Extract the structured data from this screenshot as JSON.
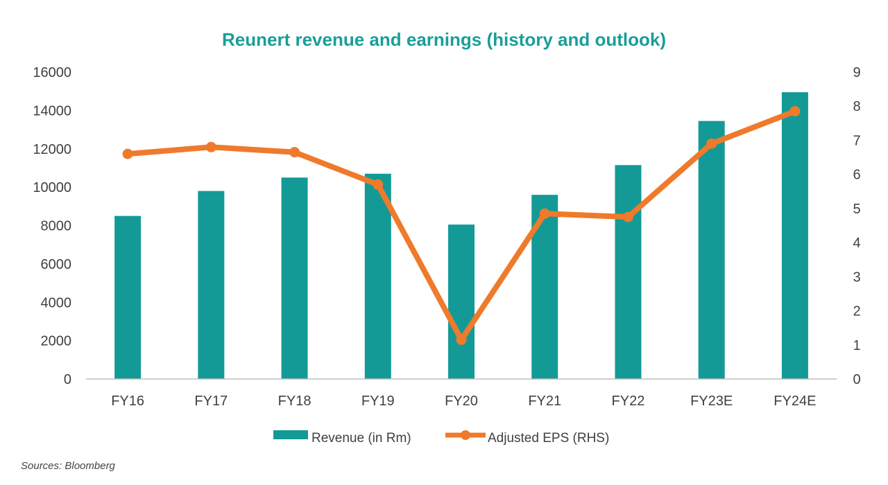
{
  "chart_data": {
    "type": "bar",
    "title": "Reunert revenue and earnings (history and outlook)",
    "categories": [
      "FY16",
      "FY17",
      "FY18",
      "FY19",
      "FY20",
      "FY21",
      "FY22",
      "FY23E",
      "FY24E"
    ],
    "series": [
      {
        "name": "Revenue (in Rm)",
        "type": "bar",
        "axis": "left",
        "values": [
          8500,
          9800,
          10500,
          10700,
          8050,
          9600,
          11150,
          13450,
          14950
        ]
      },
      {
        "name": "Adjusted EPS (RHS)",
        "type": "line",
        "axis": "right",
        "values": [
          6.6,
          6.8,
          6.65,
          5.7,
          1.15,
          4.85,
          4.75,
          6.9,
          7.85
        ]
      }
    ],
    "y_left": {
      "ylim": [
        0,
        16000
      ],
      "ticks": [
        "0",
        "2000",
        "4000",
        "6000",
        "8000",
        "10000",
        "12000",
        "14000",
        "16000"
      ]
    },
    "y_right": {
      "ylim": [
        0,
        9
      ],
      "ticks": [
        "0",
        "1",
        "2",
        "3",
        "4",
        "5",
        "6",
        "7",
        "8",
        "9"
      ]
    },
    "xlabel": "",
    "ylabel": "",
    "grid": false,
    "legend_position": "bottom"
  },
  "colors": {
    "title": "#1a9e99",
    "bar": "#139a96",
    "line": "#ef7a2b",
    "axis": "#bfbfbf",
    "text": "#404040"
  },
  "source": "Sources: Bloomberg"
}
